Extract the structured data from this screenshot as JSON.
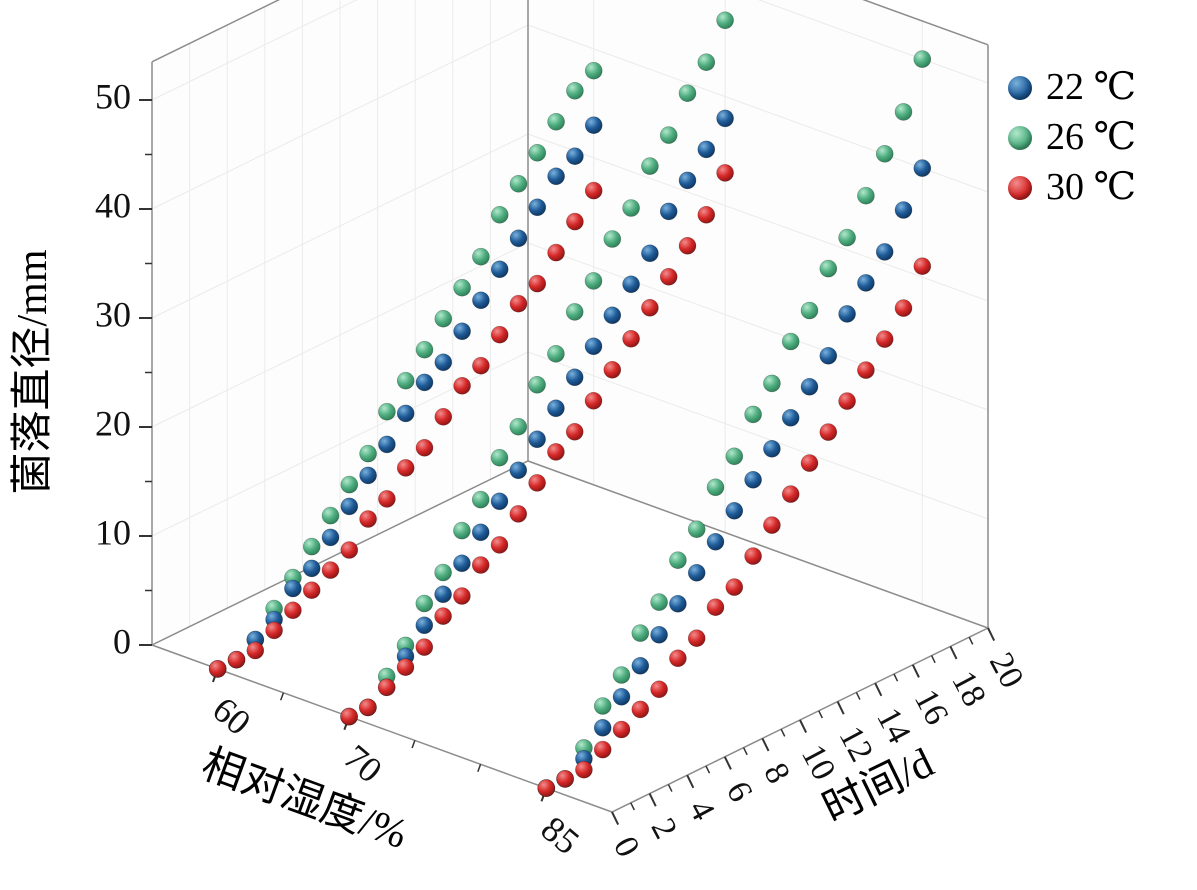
{
  "figure": {
    "background": "#ffffff",
    "box_edge_color": "#8c8c8c",
    "gridline_color": "#ebebeb",
    "tick_color": "#333333"
  },
  "legend": {
    "items": [
      {
        "label": "22 ℃",
        "temp": 22,
        "color": "#1f5c99",
        "color_light": "#7ab1dd",
        "color_dark": "#0b2e55"
      },
      {
        "label": "26 ℃",
        "temp": 26,
        "color": "#4fae80",
        "color_light": "#b2e8cd",
        "color_dark": "#27764f"
      },
      {
        "label": "30 ℃",
        "temp": 30,
        "color": "#d62828",
        "color_light": "#f28c8c",
        "color_dark": "#7e1111"
      }
    ]
  },
  "axes": {
    "y": {
      "title": "菌落直径/mm",
      "ticks": [
        0,
        10,
        20,
        30,
        40,
        50
      ],
      "minor_ticks": [
        5,
        15,
        25,
        35,
        45
      ],
      "range": [
        0,
        53.5
      ]
    },
    "x": {
      "title": "相对湿度/%",
      "ticks": [
        60,
        70,
        85
      ],
      "minor_ticks": [
        65,
        75,
        80
      ],
      "range": [
        55,
        90
      ]
    },
    "z": {
      "title": "时间/d",
      "ticks": [
        0,
        2,
        4,
        6,
        8,
        10,
        12,
        14,
        16,
        18,
        20
      ],
      "range": [
        0,
        20
      ]
    }
  },
  "chart_data": {
    "type": "scatter",
    "projection": "3d",
    "title": "",
    "xlabel": "相对湿度/%",
    "ylabel": "菌落直径/mm",
    "zlabel": "时间/d",
    "time_days": [
      0,
      1,
      2,
      3,
      4,
      5,
      6,
      7,
      8,
      9,
      10,
      11,
      12,
      13,
      14,
      15,
      16,
      17,
      18,
      19,
      20
    ],
    "groups": [
      {
        "humidity": 60,
        "series": [
          {
            "name": "26 ℃",
            "temp": 26,
            "values": [
              0,
              0,
              1,
              3,
              5,
              7,
              9,
              11,
              13,
              16,
              18,
              20,
              22,
              24,
              26,
              29,
              31,
              33,
              35,
              37,
              38
            ]
          },
          {
            "name": "22 ℃",
            "temp": 22,
            "values": [
              0,
              0,
              1,
              2,
              4,
              5,
              7,
              9,
              11,
              13,
              15,
              17,
              18,
              20,
              22,
              24,
              26,
              28,
              30,
              31,
              33
            ]
          },
          {
            "name": "30 ℃",
            "temp": 30,
            "values": [
              0,
              0,
              0,
              1,
              2,
              3,
              4,
              5,
              7,
              8,
              10,
              11,
              13,
              15,
              16,
              18,
              20,
              21,
              23,
              25,
              27
            ]
          }
        ]
      },
      {
        "humidity": 70,
        "series": [
          {
            "name": "26 ℃",
            "temp": 26,
            "values": [
              0,
              0,
              2,
              4,
              7,
              9,
              12,
              14,
              17,
              19,
              22,
              24,
              27,
              29,
              32,
              34,
              37,
              39,
              42,
              44,
              47
            ]
          },
          {
            "name": "22 ℃",
            "temp": 22,
            "values": [
              0,
              0,
              1,
              3,
              5,
              7,
              9,
              11,
              13,
              15,
              17,
              19,
              21,
              23,
              25,
              27,
              29,
              32,
              34,
              36,
              38
            ]
          },
          {
            "name": "30 ℃",
            "temp": 30,
            "values": [
              0,
              0,
              1,
              2,
              3,
              5,
              6,
              8,
              9,
              11,
              13,
              15,
              16,
              18,
              20,
              22,
              24,
              26,
              28,
              30,
              33
            ]
          }
        ]
      },
      {
        "humidity": 85,
        "series": [
          {
            "name": "26 ℃",
            "temp": 26,
            "values": [
              0,
              0,
              2,
              5,
              7,
              10,
              12,
              15,
              17,
              20,
              22,
              25,
              27,
              30,
              32,
              35,
              37,
              40,
              43,
              46,
              50
            ]
          },
          {
            "name": "22 ℃",
            "temp": 22,
            "values": [
              0,
              0,
              1,
              3,
              5,
              7,
              9,
              11,
              13,
              15,
              17,
              19,
              21,
              23,
              25,
              27,
              30,
              32,
              34,
              37,
              40
            ]
          },
          {
            "name": "30 ℃",
            "temp": 30,
            "values": [
              0,
              0,
              0,
              1,
              2,
              3,
              4,
              6,
              7,
              9,
              10,
              12,
              14,
              16,
              18,
              20,
              22,
              24,
              26,
              28,
              31
            ]
          }
        ]
      }
    ]
  }
}
